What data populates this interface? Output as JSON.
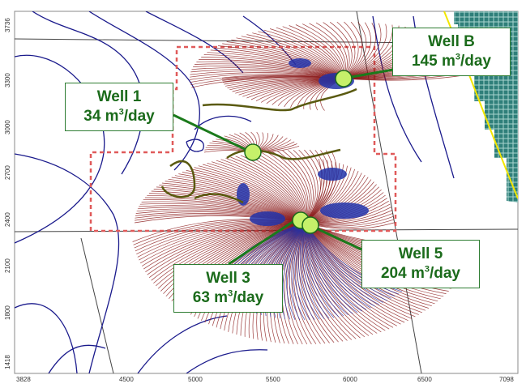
{
  "map": {
    "x_ticks": [
      "3828",
      "4500",
      "5000",
      "5500",
      "6000",
      "6500",
      "7098"
    ],
    "y_ticks": [
      "3736",
      "3300",
      "3000",
      "2700",
      "2400",
      "2100",
      "1800",
      "1418"
    ]
  },
  "wells": [
    {
      "id": "well-b",
      "name": "Well B",
      "rate": "145",
      "unit": "m",
      "unit_exp": "3",
      "unit_suffix": "/day"
    },
    {
      "id": "well-1",
      "name": "Well 1",
      "rate": "34",
      "unit": "m",
      "unit_exp": "3",
      "unit_suffix": "/day"
    },
    {
      "id": "well-3",
      "name": "Well 3",
      "rate": "63",
      "unit": "m",
      "unit_exp": "3",
      "unit_suffix": "/day"
    },
    {
      "id": "well-5",
      "name": "Well 5",
      "rate": "204",
      "unit": "m",
      "unit_exp": "3",
      "unit_suffix": "/day"
    }
  ],
  "colors": {
    "contour": "#1a1a8c",
    "pathline": "#8b1a1a",
    "pathline_blue": "#2233aa",
    "well_fill": "#c6f06a",
    "callout_text": "#1b6b1b",
    "boundary": "#e05a5a",
    "inactive": "#2f7f7a",
    "river": "#f2e600"
  }
}
